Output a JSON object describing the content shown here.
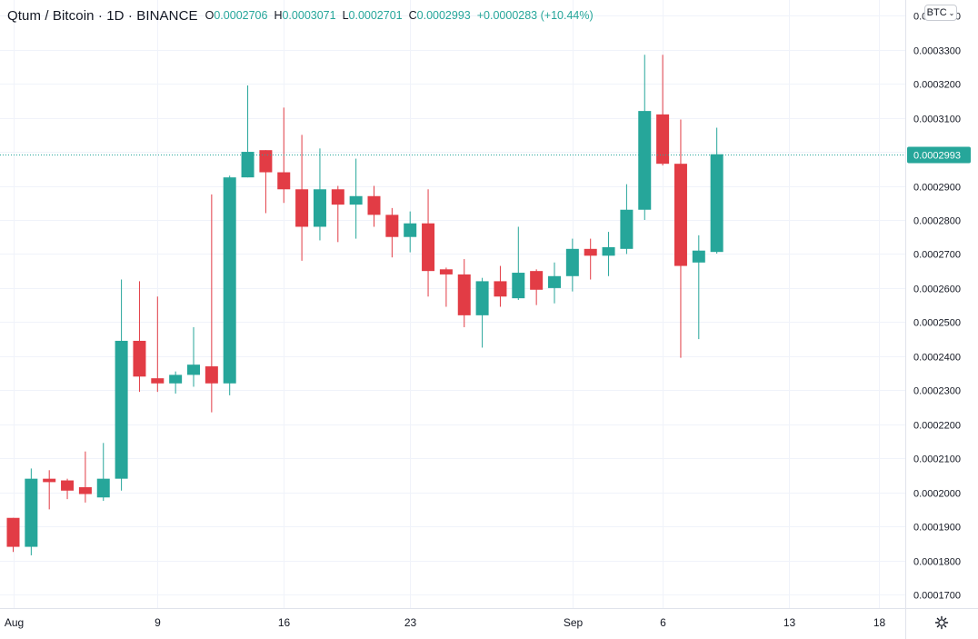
{
  "header": {
    "symbol": "Qtum / Bitcoin · 1D · BINANCE",
    "o_key": "O",
    "o_val": "0.0002706",
    "h_key": "H",
    "h_val": "0.0003071",
    "l_key": "L",
    "l_val": "0.0002701",
    "c_key": "C",
    "c_val": "0.0002993",
    "change": "+0.0000283 (+10.44%)"
  },
  "currency_button": "BTC",
  "colors": {
    "up": "#26a69a",
    "down": "#e23c45",
    "grid": "#f0f3fa",
    "axis_text": "#131722",
    "price_line": "#26a69a"
  },
  "chart_data": {
    "type": "candlestick",
    "y_ticks": [
      "0.0001700",
      "0.0001800",
      "0.0001900",
      "0.0002000",
      "0.0002100",
      "0.0002200",
      "0.0002300",
      "0.0002400",
      "0.0002500",
      "0.0002600",
      "0.0002700",
      "0.0002800",
      "0.0002900",
      "0.0003000",
      "0.0003100",
      "0.0003200",
      "0.0003300",
      "0.0003400"
    ],
    "ylim": [
      0.000166,
      0.0003446
    ],
    "x_ticks": [
      {
        "label": "Aug",
        "day": 0
      },
      {
        "label": "9",
        "day": 8
      },
      {
        "label": "16",
        "day": 15
      },
      {
        "label": "23",
        "day": 22
      },
      {
        "label": "Sep",
        "day": 31
      },
      {
        "label": "6",
        "day": 36
      },
      {
        "label": "13",
        "day": 43
      },
      {
        "label": "18",
        "day": 48
      }
    ],
    "last_price": "0.0002993",
    "candles": [
      {
        "o": 0.0001925,
        "h": 0.0001925,
        "l": 0.0001825,
        "c": 0.000184
      },
      {
        "o": 0.000184,
        "h": 0.000207,
        "l": 0.0001815,
        "c": 0.000204
      },
      {
        "o": 0.000204,
        "h": 0.0002065,
        "l": 0.000195,
        "c": 0.000203
      },
      {
        "o": 0.0002035,
        "h": 0.000204,
        "l": 0.000198,
        "c": 0.0002005
      },
      {
        "o": 0.0002015,
        "h": 0.000212,
        "l": 0.000197,
        "c": 0.0001995
      },
      {
        "o": 0.0001985,
        "h": 0.0002145,
        "l": 0.0001975,
        "c": 0.000204
      },
      {
        "o": 0.000204,
        "h": 0.0002625,
        "l": 0.0002005,
        "c": 0.0002445
      },
      {
        "o": 0.0002445,
        "h": 0.000262,
        "l": 0.0002295,
        "c": 0.000234
      },
      {
        "o": 0.0002335,
        "h": 0.0002575,
        "l": 0.0002295,
        "c": 0.000232
      },
      {
        "o": 0.000232,
        "h": 0.0002355,
        "l": 0.000229,
        "c": 0.0002345
      },
      {
        "o": 0.0002345,
        "h": 0.0002485,
        "l": 0.000231,
        "c": 0.0002375
      },
      {
        "o": 0.000237,
        "h": 0.0002875,
        "l": 0.0002235,
        "c": 0.000232
      },
      {
        "o": 0.000232,
        "h": 0.000293,
        "l": 0.0002285,
        "c": 0.0002925
      },
      {
        "o": 0.0002925,
        "h": 0.0003195,
        "l": 0.0002925,
        "c": 0.0003
      },
      {
        "o": 0.0003005,
        "h": 0.0003005,
        "l": 0.000282,
        "c": 0.000294
      },
      {
        "o": 0.000294,
        "h": 0.000313,
        "l": 0.000285,
        "c": 0.000289
      },
      {
        "o": 0.000289,
        "h": 0.000305,
        "l": 0.000268,
        "c": 0.000278
      },
      {
        "o": 0.000278,
        "h": 0.000301,
        "l": 0.000274,
        "c": 0.000289
      },
      {
        "o": 0.000289,
        "h": 0.00029,
        "l": 0.0002735,
        "c": 0.0002845
      },
      {
        "o": 0.0002845,
        "h": 0.000298,
        "l": 0.0002745,
        "c": 0.000287
      },
      {
        "o": 0.000287,
        "h": 0.00029,
        "l": 0.000278,
        "c": 0.0002815
      },
      {
        "o": 0.0002815,
        "h": 0.0002835,
        "l": 0.000269,
        "c": 0.000275
      },
      {
        "o": 0.000275,
        "h": 0.0002825,
        "l": 0.0002705,
        "c": 0.000279
      },
      {
        "o": 0.000279,
        "h": 0.000289,
        "l": 0.0002575,
        "c": 0.000265
      },
      {
        "o": 0.0002655,
        "h": 0.000266,
        "l": 0.0002545,
        "c": 0.000264
      },
      {
        "o": 0.000264,
        "h": 0.0002685,
        "l": 0.0002485,
        "c": 0.000252
      },
      {
        "o": 0.000252,
        "h": 0.000263,
        "l": 0.0002425,
        "c": 0.000262
      },
      {
        "o": 0.000262,
        "h": 0.0002665,
        "l": 0.0002545,
        "c": 0.0002575
      },
      {
        "o": 0.000257,
        "h": 0.000278,
        "l": 0.0002565,
        "c": 0.0002645
      },
      {
        "o": 0.000265,
        "h": 0.0002655,
        "l": 0.000255,
        "c": 0.0002595
      },
      {
        "o": 0.00026,
        "h": 0.0002675,
        "l": 0.0002555,
        "c": 0.0002635
      },
      {
        "o": 0.0002635,
        "h": 0.0002745,
        "l": 0.000259,
        "c": 0.0002715
      },
      {
        "o": 0.0002715,
        "h": 0.0002745,
        "l": 0.0002625,
        "c": 0.0002695
      },
      {
        "o": 0.0002695,
        "h": 0.0002765,
        "l": 0.0002635,
        "c": 0.000272
      },
      {
        "o": 0.0002715,
        "h": 0.0002905,
        "l": 0.00027,
        "c": 0.000283
      },
      {
        "o": 0.000283,
        "h": 0.0003285,
        "l": 0.00028,
        "c": 0.000312
      },
      {
        "o": 0.000311,
        "h": 0.0003285,
        "l": 0.000296,
        "c": 0.0002965
      },
      {
        "o": 0.0002965,
        "h": 0.0003095,
        "l": 0.0002395,
        "c": 0.0002665
      },
      {
        "o": 0.0002675,
        "h": 0.0002755,
        "l": 0.000245,
        "c": 0.000271
      },
      {
        "o": 0.0002706,
        "h": 0.0003071,
        "l": 0.0002701,
        "c": 0.0002993
      }
    ]
  }
}
